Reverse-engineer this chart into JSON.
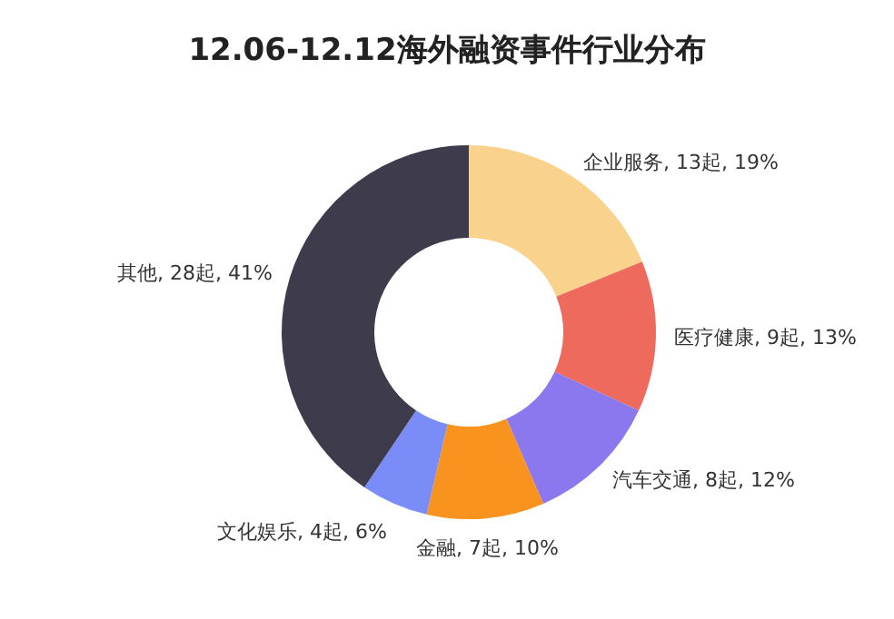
{
  "chart_data": {
    "type": "donut",
    "title": "12.06-12.12海外融资事件行业分布",
    "categories": [
      "企业服务",
      "医疗健康",
      "汽车交通",
      "金融",
      "文化娱乐",
      "其他"
    ],
    "values": [
      13,
      9,
      8,
      7,
      4,
      28
    ],
    "value_labels": [
      "13起, 19%",
      "9起, 13%",
      "8起, 12%",
      "7起, 10%",
      "4起, 6%",
      "28起, 41%"
    ],
    "colors": [
      "#f9d38e",
      "#ee6a5d",
      "#8b78ef",
      "#f8931f",
      "#7a8cf7",
      "#3e3b4c"
    ]
  }
}
